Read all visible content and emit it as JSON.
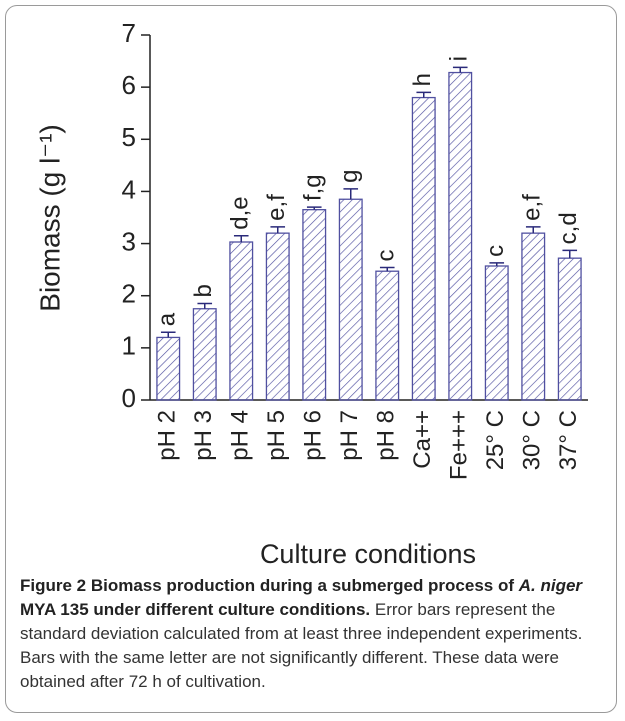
{
  "chart_data": {
    "type": "bar",
    "y_label": "Biomass (g l⁻¹)",
    "x_label": "Culture conditions",
    "categories": [
      "pH 2",
      "pH 3",
      "pH 4",
      "pH 5",
      "pH 6",
      "pH 7",
      "pH 8",
      "Ca++",
      "Fe+++",
      "25° C",
      "30° C",
      "37° C"
    ],
    "values": [
      1.2,
      1.75,
      3.03,
      3.2,
      3.65,
      3.85,
      2.47,
      5.8,
      6.28,
      2.57,
      3.2,
      2.72
    ],
    "errors": [
      0.1,
      0.1,
      0.12,
      0.12,
      0.05,
      0.2,
      0.07,
      0.1,
      0.1,
      0.06,
      0.12,
      0.15
    ],
    "bar_labels": [
      "a",
      "b",
      "d,e",
      "e,f",
      "f,g",
      "g",
      "c",
      "h",
      "i",
      "c",
      "e,f",
      "c,d"
    ],
    "color": "#5050a0",
    "ylim": [
      0,
      7
    ],
    "yticks": [
      0,
      1,
      2,
      3,
      4,
      5,
      6,
      7
    ]
  },
  "caption": {
    "bold_start": "Figure 2 Biomass production during a submerged process of ",
    "bold_italic": "A. niger",
    "bold_end": " MYA 135 under different culture conditions.",
    "text": " Error bars represent the standard deviation calculated from at least three independent experiments. Bars with the same letter are not significantly different. These data were obtained after 72 h of cultivation."
  }
}
